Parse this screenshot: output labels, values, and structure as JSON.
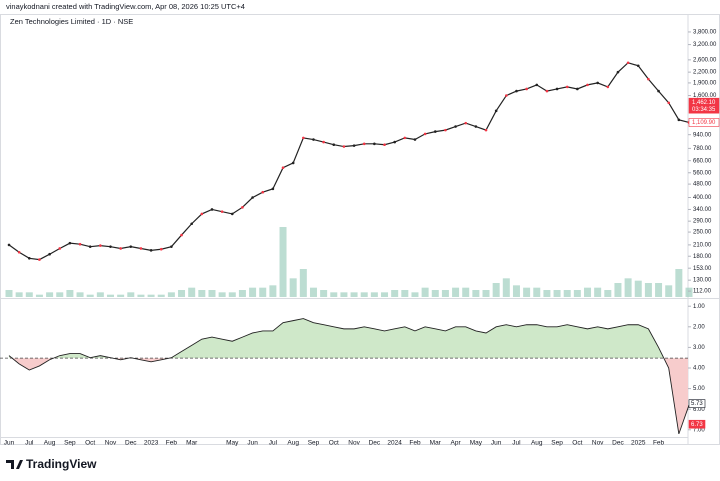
{
  "header": "vinaykodnani created with TradingView.com, Apr 08, 2026 10:25 UTC+4",
  "brand": "TradingView",
  "chart_data": [
    {
      "type": "line",
      "title": "Zen Technologies Limited · 1D · NSE",
      "categories": [
        "Jun",
        null,
        "Jul",
        null,
        "Aug",
        null,
        "Sep",
        null,
        "Oct",
        null,
        "Nov",
        null,
        "Dec",
        null,
        "2023",
        null,
        "Feb",
        null,
        "Mar",
        null,
        null,
        null,
        "May",
        null,
        "Jun",
        null,
        "Jul",
        null,
        "Aug",
        null,
        "Sep",
        null,
        "Oct",
        null,
        "Nov",
        null,
        "Dec",
        null,
        "2024",
        null,
        "Feb",
        null,
        "Mar",
        null,
        "Apr",
        null,
        "May",
        null,
        "Jun",
        null,
        "Jul",
        null,
        "Aug",
        null,
        "Sep",
        null,
        "Oct",
        null,
        "Nov",
        null,
        "Dec",
        null,
        "2025",
        null,
        "Feb",
        null,
        null,
        null
      ],
      "values": [
        210,
        190,
        175,
        172,
        185,
        200,
        215,
        212,
        205,
        208,
        205,
        200,
        205,
        200,
        195,
        198,
        205,
        240,
        280,
        320,
        340,
        330,
        320,
        350,
        400,
        430,
        450,
        600,
        640,
        900,
        880,
        850,
        820,
        800,
        810,
        830,
        830,
        820,
        850,
        900,
        880,
        950,
        980,
        1000,
        1050,
        1100,
        1050,
        1000,
        1300,
        1600,
        1700,
        1750,
        1850,
        1700,
        1750,
        1800,
        1750,
        1850,
        1900,
        1800,
        2200,
        2500,
        2400,
        2000,
        1700,
        1450,
        1150,
        1110
      ],
      "color": "#222222",
      "log_scale": true,
      "ylim": [
        102,
        4785
      ],
      "yticks": [
        {
          "value": 3800,
          "label": "3,800.00"
        },
        {
          "value": 3200,
          "label": "3,200.00"
        },
        {
          "value": 2600,
          "label": "2,600.00"
        },
        {
          "value": 2200,
          "label": "2,200.00"
        },
        {
          "value": 1900,
          "label": "1,900.00"
        },
        {
          "value": 1600,
          "label": "1,600.00"
        },
        {
          "value": 940,
          "label": "940.00"
        },
        {
          "value": 780,
          "label": "780.00"
        },
        {
          "value": 660,
          "label": "660.00"
        },
        {
          "value": 560,
          "label": "560.00"
        },
        {
          "value": 480,
          "label": "480.00"
        },
        {
          "value": 400,
          "label": "400.00"
        },
        {
          "value": 340,
          "label": "340.00"
        },
        {
          "value": 290,
          "label": "290.00"
        },
        {
          "value": 250,
          "label": "250.00"
        },
        {
          "value": 210,
          "label": "210.00"
        },
        {
          "value": 180,
          "label": "180.00"
        },
        {
          "value": 153,
          "label": "153.00"
        },
        {
          "value": 130,
          "label": "130.00"
        },
        {
          "value": 112,
          "label": "112.00"
        }
      ],
      "price_labels": [
        {
          "value": 1462.1,
          "label": "1,462.10",
          "color": "#f23645"
        },
        {
          "value": 1109.9,
          "label": "1,109.90",
          "color": "#ffffff"
        }
      ],
      "countdown": "03:34:35",
      "volume": {
        "color": "#9fcfbf",
        "values": [
          3,
          2,
          2,
          1,
          2,
          2,
          3,
          2,
          1,
          2,
          1,
          1,
          2,
          1,
          1,
          1,
          2,
          3,
          4,
          3,
          3,
          2,
          2,
          3,
          4,
          4,
          5,
          30,
          8,
          12,
          4,
          3,
          2,
          2,
          2,
          2,
          2,
          2,
          3,
          3,
          2,
          4,
          3,
          3,
          4,
          4,
          3,
          3,
          6,
          8,
          5,
          4,
          4,
          3,
          3,
          3,
          3,
          4,
          4,
          3,
          6,
          8,
          7,
          6,
          6,
          5,
          12,
          4
        ]
      }
    },
    {
      "type": "area",
      "values": [
        3.4,
        3.8,
        4.1,
        3.9,
        3.6,
        3.4,
        3.3,
        3.3,
        3.5,
        3.4,
        3.5,
        3.6,
        3.5,
        3.6,
        3.7,
        3.6,
        3.5,
        3.2,
        2.9,
        2.6,
        2.5,
        2.6,
        2.7,
        2.5,
        2.3,
        2.2,
        2.2,
        1.8,
        1.7,
        1.6,
        1.8,
        1.9,
        2.0,
        2.1,
        2.1,
        2.0,
        2.1,
        2.2,
        2.1,
        2.0,
        2.2,
        2.0,
        2.1,
        2.2,
        2.0,
        2.0,
        2.2,
        2.3,
        2.0,
        1.9,
        2.0,
        1.9,
        1.9,
        2.0,
        2.0,
        1.9,
        2.0,
        2.1,
        2.0,
        2.1,
        2.0,
        1.9,
        1.9,
        2.1,
        3.0,
        4.0,
        7.2,
        5.8
      ],
      "baseline": 3.52,
      "inverted": true,
      "color": "#222222",
      "above_color": "#cfe8c9",
      "below_color": "#f7cccc",
      "ylim": [
        0.65,
        7.35
      ],
      "yticks": [
        {
          "value": 1,
          "label": "1.00"
        },
        {
          "value": 2,
          "label": "2.00"
        },
        {
          "value": 3,
          "label": "3.00"
        },
        {
          "value": 4,
          "label": "4.00"
        },
        {
          "value": 5,
          "label": "5.00"
        },
        {
          "value": 6,
          "label": "6.00"
        },
        {
          "value": 7,
          "label": "7.00"
        }
      ],
      "price_labels": [
        {
          "value": 5.73,
          "label": "5.73",
          "color": "#ffffff"
        },
        {
          "value": 6.73,
          "label": "6.73",
          "color": "#f23645"
        }
      ]
    }
  ]
}
